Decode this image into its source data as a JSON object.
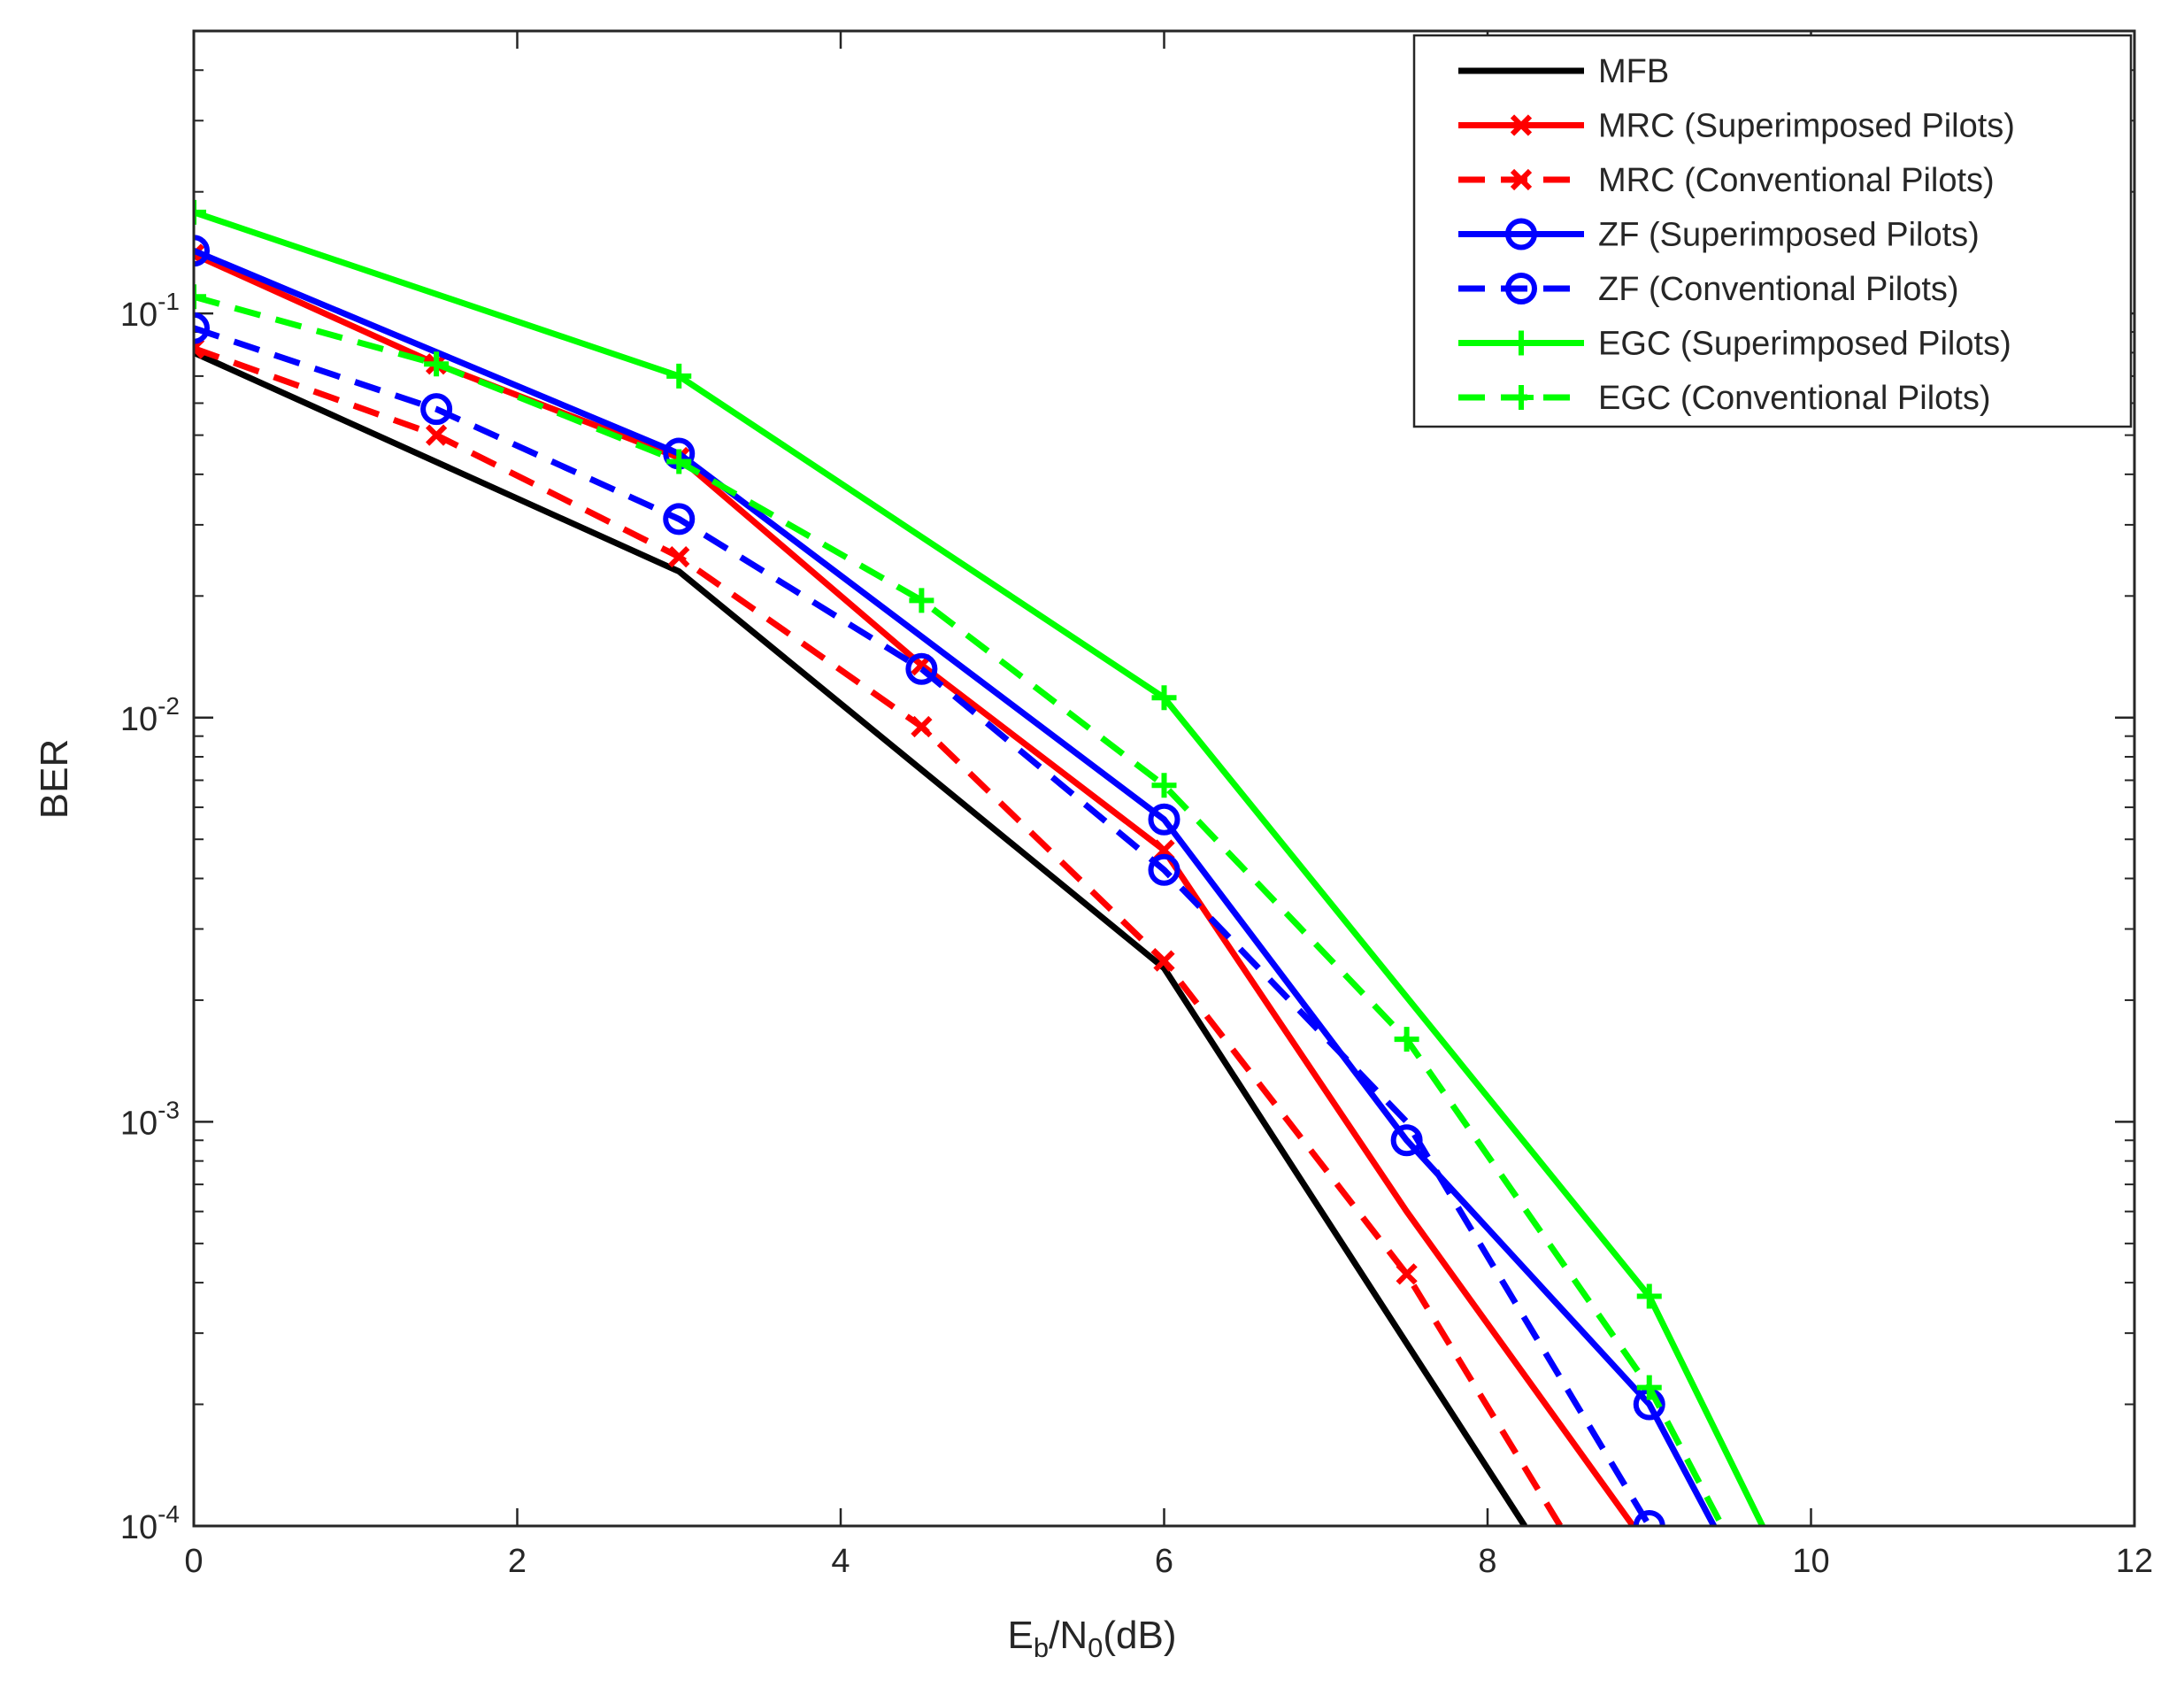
{
  "chart_data": {
    "type": "line",
    "title": "",
    "xlabel": {
      "main": "E",
      "sub1": "b",
      "mid": "/N",
      "sub2": "0",
      "end": "(dB)"
    },
    "ylabel": "BER",
    "xlim": [
      0,
      12
    ],
    "ylim": [
      0.0001,
      0.5
    ],
    "yscale": "log",
    "grid": false,
    "legend_position": "top-right",
    "x_ticks": [
      "0",
      "2",
      "4",
      "6",
      "8",
      "10",
      "12"
    ],
    "y_ticks": [
      {
        "base": "10",
        "exp": "-1"
      },
      {
        "base": "10",
        "exp": "-2"
      },
      {
        "base": "10",
        "exp": "-3"
      },
      {
        "base": "10",
        "exp": "-4"
      }
    ],
    "series": [
      {
        "name": "MFB",
        "color": "#000000",
        "dash": "solid",
        "marker": "none",
        "x": [
          0,
          3,
          6,
          8.23
        ],
        "y": [
          0.08,
          0.023,
          0.0024,
          0.0001
        ]
      },
      {
        "name": "MRC (Superimposed Pilots)",
        "color": "#ff0000",
        "dash": "solid",
        "marker": "x",
        "x": [
          0,
          1.5,
          3,
          4.5,
          6,
          7.5,
          8.9
        ],
        "y": [
          0.14,
          0.075,
          0.044,
          0.0135,
          0.0047,
          0.0006,
          0.0001
        ],
        "marker_idx": [
          0,
          1,
          2,
          3,
          4
        ]
      },
      {
        "name": "MRC (Conventional Pilots)",
        "color": "#ff0000",
        "dash": "dashed",
        "marker": "x",
        "x": [
          0,
          1.5,
          3,
          4.5,
          6,
          7.5,
          8.45
        ],
        "y": [
          0.082,
          0.05,
          0.025,
          0.0095,
          0.0025,
          0.00042,
          0.0001
        ],
        "marker_idx": [
          0,
          1,
          2,
          3,
          4,
          5
        ]
      },
      {
        "name": "ZF (Superimposed Pilots)",
        "color": "#0000ff",
        "dash": "solid",
        "marker": "o",
        "x": [
          0,
          3,
          6,
          7.5,
          9,
          9.4
        ],
        "y": [
          0.143,
          0.045,
          0.0056,
          0.0009,
          0.0002,
          0.0001
        ],
        "marker_idx": [
          0,
          1,
          2,
          3,
          4
        ]
      },
      {
        "name": "ZF (Conventional Pilots)",
        "color": "#0000ff",
        "dash": "dashed",
        "marker": "o",
        "x": [
          0,
          1.5,
          3,
          4.5,
          6,
          7.5,
          9
        ],
        "y": [
          0.092,
          0.058,
          0.031,
          0.0132,
          0.0042,
          0.001,
          0.0001
        ],
        "marker_idx": [
          0,
          1,
          2,
          3,
          4,
          6
        ]
      },
      {
        "name": "EGC (Superimposed Pilots)",
        "color": "#00ff00",
        "dash": "solid",
        "marker": "+",
        "x": [
          0,
          3,
          6,
          9,
          9.7
        ],
        "y": [
          0.178,
          0.07,
          0.0112,
          0.00037,
          0.0001
        ],
        "marker_idx": [
          0,
          1,
          2,
          3
        ]
      },
      {
        "name": "EGC (Conventional Pilots)",
        "color": "#00ff00",
        "dash": "dashed",
        "marker": "+",
        "x": [
          0,
          1.5,
          3,
          4.5,
          6,
          7.5,
          9,
          9.45
        ],
        "y": [
          0.11,
          0.075,
          0.043,
          0.0195,
          0.0068,
          0.0016,
          0.00022,
          0.0001
        ],
        "marker_idx": [
          0,
          1,
          2,
          3,
          4,
          5,
          6
        ]
      }
    ]
  }
}
